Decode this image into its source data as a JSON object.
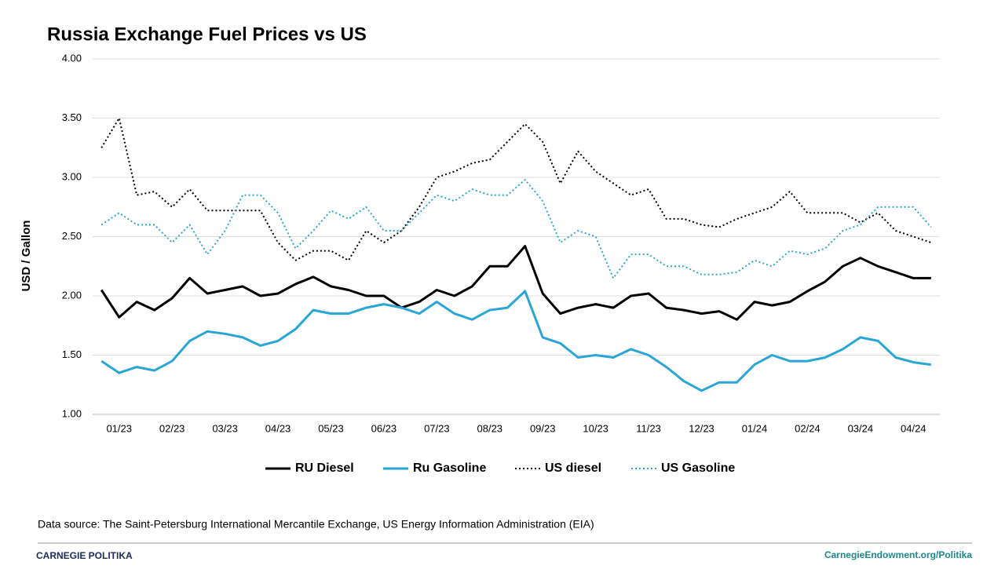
{
  "chart_data": {
    "type": "line",
    "title": "Russia Exchange Fuel Prices vs US",
    "y_label": "USD / Gallon",
    "categories": [
      null,
      "01/23",
      null,
      null,
      "02/23",
      null,
      null,
      "03/23",
      null,
      null,
      "04/23",
      null,
      null,
      "05/23",
      null,
      null,
      "06/23",
      null,
      null,
      "07/23",
      null,
      null,
      "08/23",
      null,
      null,
      "09/23",
      null,
      null,
      "10/23",
      null,
      null,
      "11/23",
      null,
      null,
      "12/23",
      null,
      null,
      "01/24",
      null,
      null,
      "02/24",
      null,
      null,
      "03/24",
      null,
      null,
      "04/24",
      null
    ],
    "ylim": [
      1,
      4
    ],
    "yticks": [
      {
        "value": 1,
        "label": "1.00"
      },
      {
        "value": 1.5,
        "label": "1.50"
      },
      {
        "value": 2,
        "label": "2.00"
      },
      {
        "value": 2.5,
        "label": "2.50"
      },
      {
        "value": 3,
        "label": "3.00"
      },
      {
        "value": 3.5,
        "label": "3.50"
      },
      {
        "value": 4,
        "label": "4.00"
      }
    ],
    "grid": true,
    "legend": "bottom",
    "series": [
      {
        "name": "RU Diesel",
        "color": "#000000",
        "line_style": "solid",
        "values": [
          2.05,
          1.82,
          1.95,
          1.88,
          1.98,
          2.15,
          2.02,
          2.05,
          2.08,
          2.0,
          2.02,
          2.1,
          2.16,
          2.08,
          2.05,
          2.0,
          2.0,
          1.9,
          1.95,
          2.05,
          2.0,
          2.08,
          2.25,
          2.25,
          2.42,
          2.02,
          1.85,
          1.9,
          1.93,
          1.9,
          2.0,
          2.02,
          1.9,
          1.88,
          1.85,
          1.87,
          1.8,
          1.95,
          1.92,
          1.95,
          2.04,
          2.12,
          2.25,
          2.32,
          2.25,
          2.2,
          2.15,
          2.15
        ]
      },
      {
        "name": "Ru Gasoline",
        "color": "#2aa6d6",
        "line_style": "solid",
        "values": [
          1.45,
          1.35,
          1.4,
          1.37,
          1.45,
          1.62,
          1.7,
          1.68,
          1.65,
          1.58,
          1.62,
          1.72,
          1.88,
          1.85,
          1.85,
          1.9,
          1.93,
          1.9,
          1.85,
          1.95,
          1.85,
          1.8,
          1.88,
          1.9,
          2.04,
          1.65,
          1.6,
          1.48,
          1.5,
          1.48,
          1.55,
          1.5,
          1.4,
          1.28,
          1.2,
          1.27,
          1.27,
          1.42,
          1.5,
          1.45,
          1.45,
          1.48,
          1.55,
          1.65,
          1.62,
          1.48,
          1.44,
          1.42
        ]
      },
      {
        "name": "US diesel",
        "color": "#000000",
        "line_style": "dotted",
        "values": [
          3.25,
          3.5,
          2.85,
          2.88,
          2.75,
          2.9,
          2.72,
          2.72,
          2.72,
          2.72,
          2.45,
          2.3,
          2.38,
          2.38,
          2.3,
          2.55,
          2.45,
          2.55,
          2.75,
          3.0,
          3.05,
          3.12,
          3.15,
          3.3,
          3.45,
          3.3,
          2.95,
          3.22,
          3.05,
          2.95,
          2.85,
          2.9,
          2.65,
          2.65,
          2.6,
          2.58,
          2.65,
          2.7,
          2.75,
          2.88,
          2.7,
          2.7,
          2.7,
          2.62,
          2.7,
          2.55,
          2.5,
          2.45
        ]
      },
      {
        "name": "US Gasoline",
        "color": "#2aa6d6",
        "line_style": "dotted",
        "values": [
          2.6,
          2.7,
          2.6,
          2.6,
          2.45,
          2.6,
          2.35,
          2.55,
          2.85,
          2.85,
          2.7,
          2.4,
          2.55,
          2.72,
          2.65,
          2.75,
          2.55,
          2.55,
          2.7,
          2.85,
          2.8,
          2.9,
          2.85,
          2.85,
          2.98,
          2.8,
          2.45,
          2.55,
          2.5,
          2.15,
          2.35,
          2.35,
          2.25,
          2.25,
          2.18,
          2.18,
          2.2,
          2.3,
          2.25,
          2.38,
          2.35,
          2.4,
          2.55,
          2.6,
          2.75,
          2.75,
          2.75,
          2.58
        ]
      }
    ]
  },
  "source": "Data source:  The Saint-Petersburg  International Mercantile Exchange, US Energy Information Administration (EIA)",
  "footer": {
    "left": "CARNEGIE POLITIKA",
    "right": "CarnegieEndowment.org/Politika"
  }
}
